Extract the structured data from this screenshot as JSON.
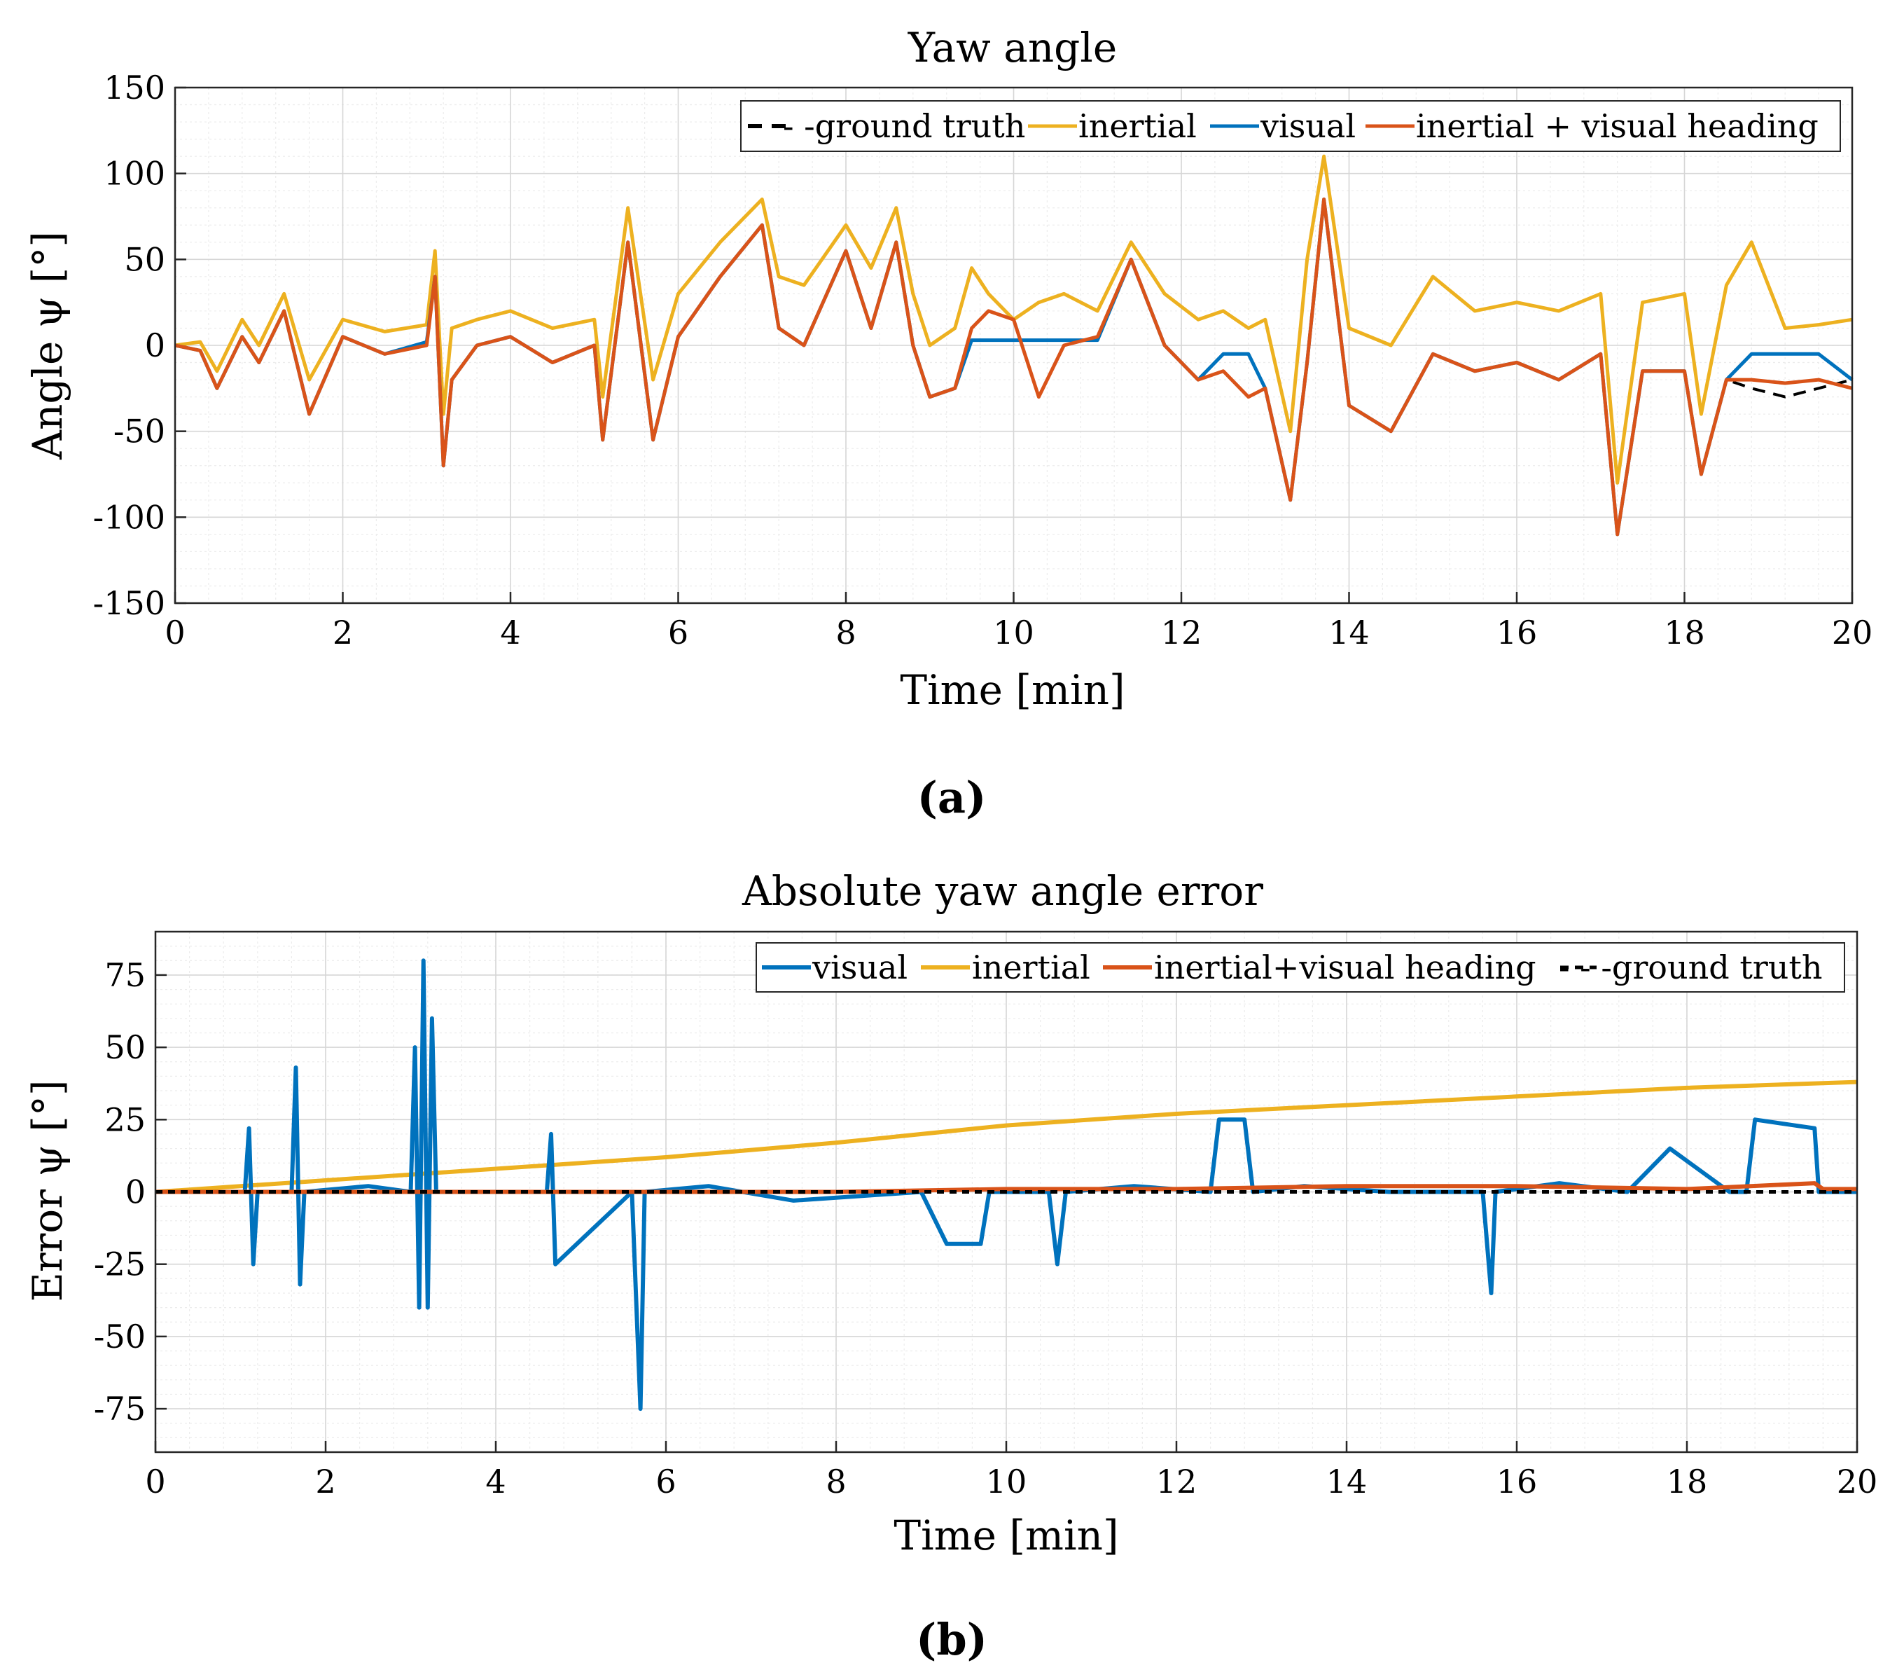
{
  "chart_data": [
    {
      "id": "a",
      "type": "line",
      "panel_label": "(a)",
      "title": "Yaw angle",
      "xlabel": "Time [min]",
      "ylabel": "Angle ψ [°]",
      "xlim": [
        0,
        20
      ],
      "ylim": [
        -150,
        150
      ],
      "xticks": [
        0,
        2,
        4,
        6,
        8,
        10,
        12,
        14,
        16,
        18,
        20
      ],
      "xtick_labels": [
        "0",
        "2",
        "4",
        "6",
        "8",
        "10",
        "12",
        "14",
        "16",
        "18",
        "20"
      ],
      "yticks": [
        150,
        100,
        50,
        0,
        -50,
        -100,
        -150
      ],
      "ytick_labels": [
        "150",
        "100",
        "50",
        "0",
        "-50",
        "-100",
        "-150"
      ],
      "grid": true,
      "minor_grid": true,
      "legend_position": "top-right",
      "series": [
        {
          "name": "ground truth",
          "legend": "- -ground truth",
          "color": "#000000",
          "dash": true,
          "x": [
            0,
            0.3,
            0.5,
            0.8,
            1.0,
            1.3,
            1.6,
            2.0,
            2.5,
            3.0,
            3.1,
            3.2,
            3.3,
            3.6,
            4.0,
            4.5,
            5.0,
            5.1,
            5.4,
            5.7,
            6.0,
            6.5,
            7.0,
            7.2,
            7.5,
            8.0,
            8.3,
            8.6,
            8.8,
            9.0,
            9.3,
            9.5,
            9.7,
            10.0,
            10.3,
            10.6,
            11.0,
            11.4,
            11.8,
            12.2,
            12.5,
            12.8,
            13.0,
            13.3,
            13.5,
            13.7,
            14.0,
            14.5,
            15.0,
            15.5,
            16.0,
            16.5,
            17.0,
            17.2,
            17.5,
            18.0,
            18.2,
            18.5,
            18.8,
            19.2,
            19.6,
            20.0
          ],
          "y": [
            0,
            -3,
            -25,
            5,
            -10,
            20,
            -40,
            5,
            -5,
            0,
            40,
            -70,
            -20,
            0,
            5,
            -10,
            0,
            -55,
            60,
            -55,
            5,
            40,
            70,
            10,
            0,
            55,
            10,
            60,
            0,
            -30,
            -25,
            10,
            20,
            15,
            -30,
            0,
            5,
            50,
            0,
            -20,
            -15,
            -30,
            -25,
            -90,
            -10,
            85,
            -35,
            -50,
            -5,
            -15,
            -10,
            -20,
            -5,
            -110,
            -15,
            -15,
            -75,
            -20,
            -25,
            -30,
            -25,
            -20
          ]
        },
        {
          "name": "inertial",
          "legend": "inertial",
          "color": "#EDB120",
          "dash": false,
          "x": [
            0,
            0.3,
            0.5,
            0.8,
            1.0,
            1.3,
            1.6,
            2.0,
            2.5,
            3.0,
            3.1,
            3.2,
            3.3,
            3.6,
            4.0,
            4.5,
            5.0,
            5.1,
            5.4,
            5.7,
            6.0,
            6.5,
            7.0,
            7.2,
            7.5,
            8.0,
            8.3,
            8.6,
            8.8,
            9.0,
            9.3,
            9.5,
            9.7,
            10.0,
            10.3,
            10.6,
            11.0,
            11.4,
            11.8,
            12.2,
            12.5,
            12.8,
            13.0,
            13.3,
            13.5,
            13.7,
            14.0,
            14.5,
            15.0,
            15.5,
            16.0,
            16.5,
            17.0,
            17.2,
            17.5,
            18.0,
            18.2,
            18.5,
            18.8,
            19.2,
            19.6,
            20.0
          ],
          "y": [
            0,
            2,
            -15,
            15,
            0,
            30,
            -20,
            15,
            8,
            12,
            55,
            -40,
            10,
            15,
            20,
            10,
            15,
            -30,
            80,
            -20,
            30,
            60,
            85,
            40,
            35,
            70,
            45,
            80,
            30,
            0,
            10,
            45,
            30,
            15,
            25,
            30,
            20,
            60,
            30,
            15,
            20,
            10,
            15,
            -50,
            50,
            110,
            10,
            0,
            40,
            20,
            25,
            20,
            30,
            -80,
            25,
            30,
            -40,
            35,
            60,
            10,
            12,
            15
          ]
        },
        {
          "name": "visual",
          "legend": "visual",
          "color": "#0072BD",
          "dash": false,
          "x": [
            0,
            0.3,
            0.5,
            0.8,
            1.0,
            1.3,
            1.6,
            2.0,
            2.5,
            3.0,
            3.1,
            3.2,
            3.3,
            3.6,
            4.0,
            4.5,
            5.0,
            5.1,
            5.4,
            5.7,
            6.0,
            6.5,
            7.0,
            7.2,
            7.5,
            8.0,
            8.3,
            8.6,
            8.8,
            9.0,
            9.3,
            9.5,
            9.7,
            10.0,
            10.3,
            10.6,
            11.0,
            11.4,
            11.8,
            12.2,
            12.5,
            12.8,
            13.0,
            13.3,
            13.5,
            13.7,
            14.0,
            14.5,
            15.0,
            15.5,
            16.0,
            16.5,
            17.0,
            17.2,
            17.5,
            18.0,
            18.2,
            18.5,
            18.8,
            19.2,
            19.6,
            20.0
          ],
          "y": [
            0,
            -3,
            -25,
            5,
            -10,
            20,
            -40,
            5,
            -5,
            2,
            40,
            -70,
            -20,
            0,
            5,
            -10,
            0,
            -55,
            60,
            -55,
            5,
            40,
            70,
            10,
            0,
            55,
            10,
            60,
            0,
            -30,
            -25,
            3,
            3,
            3,
            3,
            3,
            3,
            50,
            0,
            -20,
            -5,
            -5,
            -25,
            -90,
            -10,
            85,
            -35,
            -50,
            -5,
            -15,
            -10,
            -20,
            -5,
            -110,
            -15,
            -15,
            -75,
            -20,
            -5,
            -5,
            -5,
            -20
          ]
        },
        {
          "name": "inertial + visual heading",
          "legend": "inertial + visual heading",
          "color": "#D95319",
          "dash": false,
          "x": [
            0,
            0.3,
            0.5,
            0.8,
            1.0,
            1.3,
            1.6,
            2.0,
            2.5,
            3.0,
            3.1,
            3.2,
            3.3,
            3.6,
            4.0,
            4.5,
            5.0,
            5.1,
            5.4,
            5.7,
            6.0,
            6.5,
            7.0,
            7.2,
            7.5,
            8.0,
            8.3,
            8.6,
            8.8,
            9.0,
            9.3,
            9.5,
            9.7,
            10.0,
            10.3,
            10.6,
            11.0,
            11.4,
            11.8,
            12.2,
            12.5,
            12.8,
            13.0,
            13.3,
            13.5,
            13.7,
            14.0,
            14.5,
            15.0,
            15.5,
            16.0,
            16.5,
            17.0,
            17.2,
            17.5,
            18.0,
            18.2,
            18.5,
            18.8,
            19.2,
            19.6,
            20.0
          ],
          "y": [
            0,
            -3,
            -25,
            5,
            -10,
            20,
            -40,
            5,
            -5,
            0,
            40,
            -70,
            -20,
            0,
            5,
            -10,
            0,
            -55,
            60,
            -55,
            5,
            40,
            70,
            10,
            0,
            55,
            10,
            60,
            0,
            -30,
            -25,
            10,
            20,
            15,
            -30,
            0,
            5,
            50,
            0,
            -20,
            -15,
            -30,
            -25,
            -90,
            -10,
            85,
            -35,
            -50,
            -5,
            -15,
            -10,
            -20,
            -5,
            -110,
            -15,
            -15,
            -75,
            -20,
            -20,
            -22,
            -20,
            -25
          ]
        }
      ]
    },
    {
      "id": "b",
      "type": "line",
      "panel_label": "(b)",
      "title": "Absolute yaw angle error",
      "xlabel": "Time [min]",
      "ylabel": "Error ψ [°]",
      "xlim": [
        0,
        20
      ],
      "ylim": [
        -90,
        90
      ],
      "xticks": [
        0,
        2,
        4,
        6,
        8,
        10,
        12,
        14,
        16,
        18,
        20
      ],
      "xtick_labels": [
        "0",
        "2",
        "4",
        "6",
        "8",
        "10",
        "12",
        "14",
        "16",
        "18",
        "20"
      ],
      "yticks": [
        75,
        50,
        25,
        0,
        -25,
        -50,
        -75
      ],
      "ytick_labels": [
        "75",
        "50",
        "25",
        "0",
        "-25",
        "-50",
        "-75"
      ],
      "grid": true,
      "minor_grid": true,
      "legend_position": "top-right",
      "series": [
        {
          "name": "visual",
          "legend": "visual",
          "color": "#0072BD",
          "dash": false,
          "x": [
            0,
            1.05,
            1.1,
            1.15,
            1.2,
            1.6,
            1.65,
            1.7,
            1.75,
            2.5,
            3.0,
            3.05,
            3.1,
            3.15,
            3.2,
            3.25,
            3.3,
            4.6,
            4.65,
            4.7,
            5.6,
            5.7,
            5.75,
            6.5,
            7.5,
            9.0,
            9.3,
            9.4,
            9.7,
            9.8,
            10.5,
            10.6,
            10.7,
            11.5,
            12.4,
            12.5,
            12.8,
            12.9,
            13.5,
            14.5,
            15.6,
            15.7,
            15.75,
            16.5,
            17.3,
            17.8,
            18.5,
            18.7,
            18.8,
            19.5,
            19.55,
            20.0
          ],
          "y": [
            0,
            0,
            22,
            -25,
            0,
            0,
            43,
            -32,
            0,
            2,
            0,
            50,
            -40,
            80,
            -40,
            60,
            0,
            0,
            20,
            -25,
            0,
            -75,
            0,
            2,
            -3,
            0,
            -18,
            -18,
            -18,
            0,
            0,
            -25,
            0,
            2,
            0,
            25,
            25,
            0,
            2,
            0,
            0,
            -35,
            0,
            3,
            0,
            15,
            0,
            0,
            25,
            22,
            0,
            0
          ]
        },
        {
          "name": "inertial",
          "legend": "inertial",
          "color": "#EDB120",
          "dash": false,
          "x": [
            0,
            2,
            4,
            6,
            8,
            10,
            12,
            14,
            16,
            18,
            20
          ],
          "y": [
            0,
            4,
            8,
            12,
            17,
            23,
            27,
            30,
            33,
            36,
            38
          ]
        },
        {
          "name": "inertial+visual heading",
          "legend": "inertial+visual heading",
          "color": "#D95319",
          "dash": false,
          "x": [
            0,
            2,
            4,
            6,
            8,
            10,
            12,
            14,
            16,
            18,
            19.5,
            19.6,
            20.0
          ],
          "y": [
            0,
            0,
            0,
            0,
            0,
            1,
            1,
            2,
            2,
            1,
            3,
            1,
            1
          ]
        },
        {
          "name": "ground truth",
          "legend": "- - -ground truth",
          "color": "#000000",
          "dash": true,
          "x": [
            0,
            20
          ],
          "y": [
            0,
            0
          ]
        }
      ]
    }
  ]
}
